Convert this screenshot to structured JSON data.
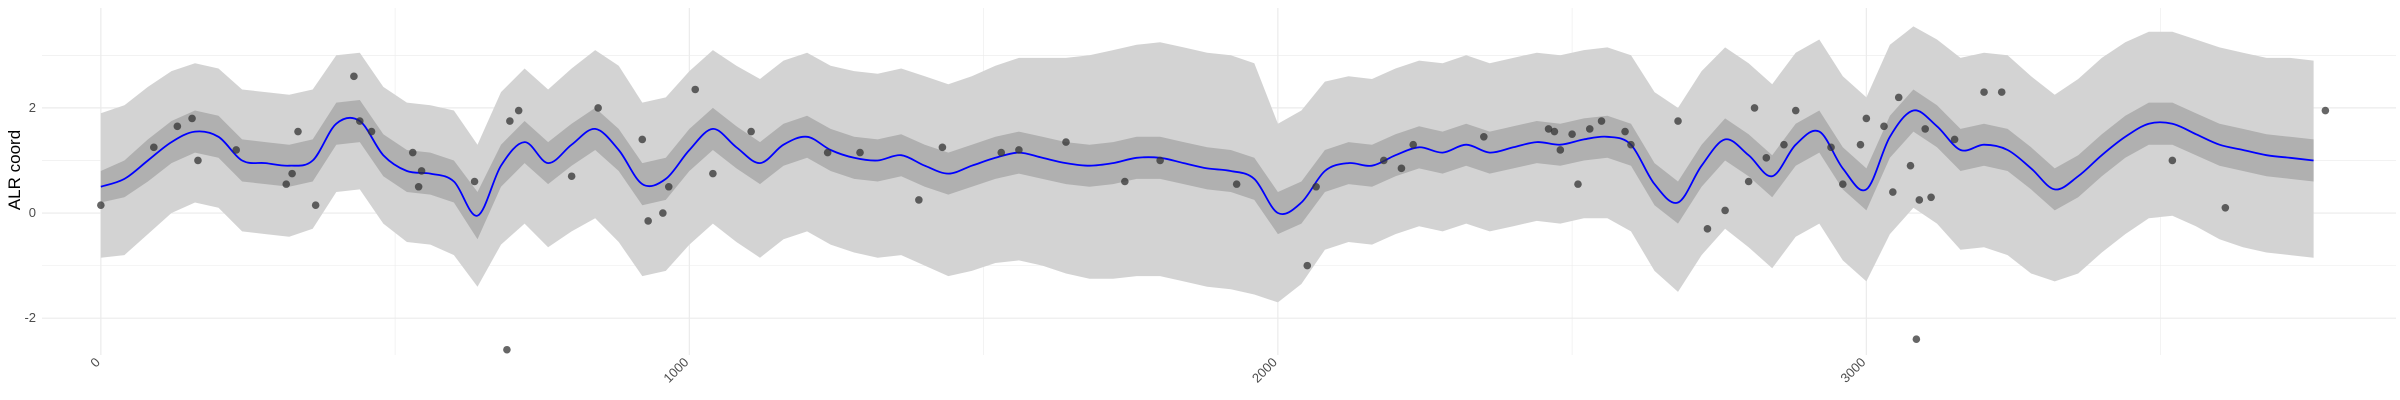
{
  "chart_data": {
    "type": "line",
    "title": "",
    "xlabel": "",
    "ylabel": "ALR coord",
    "xlim": [
      -100,
      3900
    ],
    "ylim": [
      -2.7,
      3.9
    ],
    "x_ticks": [
      0,
      1000,
      2000,
      3000
    ],
    "x_tick_labels": [
      "0",
      "1000",
      "2000",
      "3000"
    ],
    "y_ticks": [
      -2,
      0,
      2
    ],
    "y_tick_labels": [
      "-2",
      "0",
      "2"
    ],
    "grid": true,
    "colors": {
      "mean_line": "#0000ff",
      "inner_band": "#b0b0b0",
      "outer_band": "#d3d3d3",
      "points": "#333333",
      "grid": "#ebebeb"
    },
    "mean_curve": {
      "x": [
        0,
        40,
        80,
        120,
        160,
        200,
        240,
        280,
        320,
        360,
        400,
        440,
        480,
        520,
        560,
        600,
        640,
        680,
        720,
        760,
        800,
        840,
        880,
        920,
        960,
        1000,
        1040,
        1080,
        1120,
        1160,
        1200,
        1240,
        1280,
        1320,
        1360,
        1400,
        1440,
        1480,
        1520,
        1560,
        1600,
        1640,
        1680,
        1720,
        1760,
        1800,
        1840,
        1880,
        1920,
        1960,
        2000,
        2040,
        2080,
        2120,
        2160,
        2200,
        2240,
        2280,
        2320,
        2360,
        2400,
        2440,
        2480,
        2520,
        2560,
        2600,
        2640,
        2680,
        2720,
        2760,
        2800,
        2840,
        2880,
        2920,
        2960,
        3000,
        3040,
        3080,
        3120,
        3160,
        3200,
        3240,
        3280,
        3320,
        3360,
        3400,
        3440,
        3480,
        3520,
        3560,
        3600,
        3640,
        3680,
        3720,
        3760
      ],
      "y": [
        0.5,
        0.65,
        1.0,
        1.35,
        1.55,
        1.45,
        1.0,
        0.95,
        0.9,
        1.0,
        1.7,
        1.75,
        1.1,
        0.8,
        0.75,
        0.6,
        -0.05,
        0.9,
        1.35,
        0.95,
        1.3,
        1.6,
        1.2,
        0.55,
        0.65,
        1.2,
        1.6,
        1.25,
        0.95,
        1.3,
        1.45,
        1.2,
        1.05,
        1.0,
        1.1,
        0.9,
        0.75,
        0.9,
        1.05,
        1.15,
        1.05,
        0.95,
        0.9,
        0.95,
        1.05,
        1.05,
        0.95,
        0.85,
        0.8,
        0.65,
        0.0,
        0.2,
        0.8,
        0.95,
        0.9,
        1.1,
        1.25,
        1.15,
        1.3,
        1.15,
        1.25,
        1.35,
        1.3,
        1.4,
        1.45,
        1.3,
        0.55,
        0.2,
        0.9,
        1.4,
        1.1,
        0.7,
        1.3,
        1.55,
        0.85,
        0.45,
        1.45,
        1.95,
        1.65,
        1.2,
        1.3,
        1.2,
        0.85,
        0.45,
        0.7,
        1.1,
        1.45,
        1.7,
        1.7,
        1.5,
        1.3,
        1.2,
        1.1,
        1.05,
        1.0
      ]
    },
    "inner_band": {
      "lower": [
        0.2,
        0.3,
        0.6,
        0.95,
        1.15,
        1.05,
        0.6,
        0.55,
        0.5,
        0.6,
        1.3,
        1.35,
        0.7,
        0.4,
        0.35,
        0.2,
        -0.5,
        0.5,
        0.95,
        0.55,
        0.9,
        1.2,
        0.8,
        0.15,
        0.25,
        0.8,
        1.2,
        0.85,
        0.55,
        0.9,
        1.05,
        0.8,
        0.65,
        0.6,
        0.7,
        0.5,
        0.35,
        0.5,
        0.65,
        0.75,
        0.65,
        0.55,
        0.5,
        0.55,
        0.65,
        0.65,
        0.55,
        0.45,
        0.4,
        0.25,
        -0.4,
        -0.2,
        0.4,
        0.55,
        0.5,
        0.7,
        0.85,
        0.75,
        0.9,
        0.75,
        0.85,
        0.95,
        0.9,
        1.0,
        1.05,
        0.9,
        0.15,
        -0.2,
        0.5,
        1.0,
        0.7,
        0.3,
        0.9,
        1.15,
        0.45,
        0.05,
        1.05,
        1.55,
        1.25,
        0.8,
        0.9,
        0.8,
        0.45,
        0.05,
        0.3,
        0.7,
        1.05,
        1.3,
        1.3,
        1.1,
        0.9,
        0.8,
        0.7,
        0.65,
        0.6
      ],
      "upper": [
        0.8,
        1.0,
        1.4,
        1.75,
        1.95,
        1.85,
        1.4,
        1.35,
        1.3,
        1.4,
        2.1,
        2.15,
        1.5,
        1.2,
        1.15,
        1.0,
        0.4,
        1.3,
        1.75,
        1.35,
        1.7,
        2.0,
        1.6,
        0.95,
        1.05,
        1.6,
        2.0,
        1.65,
        1.35,
        1.7,
        1.85,
        1.6,
        1.45,
        1.4,
        1.5,
        1.3,
        1.15,
        1.3,
        1.45,
        1.55,
        1.45,
        1.35,
        1.3,
        1.35,
        1.45,
        1.45,
        1.35,
        1.25,
        1.2,
        1.05,
        0.4,
        0.6,
        1.2,
        1.35,
        1.3,
        1.5,
        1.65,
        1.55,
        1.7,
        1.55,
        1.65,
        1.75,
        1.7,
        1.8,
        1.85,
        1.7,
        0.95,
        0.6,
        1.3,
        1.8,
        1.5,
        1.1,
        1.7,
        1.95,
        1.25,
        0.85,
        1.85,
        2.35,
        2.05,
        1.6,
        1.7,
        1.6,
        1.25,
        0.85,
        1.1,
        1.5,
        1.85,
        2.1,
        2.1,
        1.9,
        1.7,
        1.6,
        1.5,
        1.45,
        1.4
      ]
    },
    "outer_band": {
      "lower": [
        -0.85,
        -0.8,
        -0.4,
        0.0,
        0.2,
        0.1,
        -0.35,
        -0.4,
        -0.45,
        -0.3,
        0.4,
        0.45,
        -0.2,
        -0.55,
        -0.6,
        -0.8,
        -1.4,
        -0.6,
        -0.2,
        -0.65,
        -0.35,
        -0.1,
        -0.55,
        -1.2,
        -1.1,
        -0.6,
        -0.2,
        -0.55,
        -0.85,
        -0.5,
        -0.35,
        -0.6,
        -0.75,
        -0.85,
        -0.8,
        -1.0,
        -1.2,
        -1.1,
        -0.95,
        -0.9,
        -1.0,
        -1.15,
        -1.25,
        -1.25,
        -1.2,
        -1.2,
        -1.3,
        -1.4,
        -1.45,
        -1.55,
        -1.7,
        -1.35,
        -0.7,
        -0.55,
        -0.6,
        -0.4,
        -0.25,
        -0.35,
        -0.2,
        -0.35,
        -0.25,
        -0.15,
        -0.2,
        -0.1,
        -0.1,
        -0.35,
        -1.1,
        -1.5,
        -0.8,
        -0.3,
        -0.65,
        -1.05,
        -0.45,
        -0.2,
        -0.9,
        -1.3,
        -0.4,
        0.1,
        -0.2,
        -0.7,
        -0.65,
        -0.8,
        -1.15,
        -1.3,
        -1.15,
        -0.75,
        -0.4,
        -0.1,
        -0.05,
        -0.25,
        -0.5,
        -0.65,
        -0.75,
        -0.8,
        -0.85
      ],
      "upper": [
        1.9,
        2.05,
        2.4,
        2.7,
        2.85,
        2.75,
        2.35,
        2.3,
        2.25,
        2.35,
        3.0,
        3.05,
        2.4,
        2.1,
        2.05,
        1.95,
        1.3,
        2.3,
        2.75,
        2.35,
        2.75,
        3.1,
        2.8,
        2.1,
        2.2,
        2.7,
        3.1,
        2.8,
        2.55,
        2.9,
        3.05,
        2.8,
        2.7,
        2.65,
        2.75,
        2.6,
        2.45,
        2.6,
        2.8,
        2.95,
        2.95,
        2.95,
        3.0,
        3.1,
        3.2,
        3.25,
        3.15,
        3.05,
        3.0,
        2.85,
        1.7,
        1.95,
        2.5,
        2.6,
        2.55,
        2.75,
        2.9,
        2.85,
        3.0,
        2.85,
        2.95,
        3.05,
        3.0,
        3.1,
        3.15,
        3.0,
        2.3,
        2.0,
        2.7,
        3.15,
        2.85,
        2.45,
        3.05,
        3.3,
        2.6,
        2.2,
        3.2,
        3.55,
        3.3,
        2.95,
        3.05,
        3.0,
        2.6,
        2.25,
        2.55,
        2.95,
        3.25,
        3.45,
        3.45,
        3.3,
        3.15,
        3.05,
        2.95,
        2.95,
        2.9
      ]
    },
    "points": {
      "x": [
        0,
        90,
        130,
        155,
        165,
        230,
        315,
        325,
        335,
        365,
        430,
        440,
        460,
        530,
        540,
        545,
        635,
        690,
        695,
        710,
        800,
        845,
        920,
        930,
        955,
        965,
        1010,
        1040,
        1105,
        1235,
        1290,
        1390,
        1430,
        1530,
        1560,
        1640,
        1740,
        1800,
        1930,
        2050,
        2065,
        2180,
        2210,
        2230,
        2350,
        2460,
        2470,
        2480,
        2500,
        2510,
        2530,
        2550,
        2590,
        2600,
        2680,
        2730,
        2760,
        2800,
        2810,
        2830,
        2860,
        2880,
        2940,
        2960,
        2990,
        3000,
        3030,
        3045,
        3055,
        3075,
        3085,
        3090,
        3100,
        3110,
        3150,
        3200,
        3230,
        3520,
        3610,
        3780
      ],
      "y": [
        0.15,
        1.25,
        1.65,
        1.8,
        1.0,
        1.2,
        0.55,
        0.75,
        1.55,
        0.15,
        2.6,
        1.75,
        1.55,
        1.15,
        0.5,
        0.8,
        0.6,
        -2.6,
        1.75,
        1.95,
        0.7,
        2.0,
        1.4,
        -0.15,
        0.0,
        0.5,
        2.35,
        0.75,
        1.55,
        1.15,
        1.15,
        0.25,
        1.25,
        1.15,
        1.2,
        1.35,
        0.6,
        1.0,
        0.55,
        -1.0,
        0.5,
        1.0,
        0.85,
        1.3,
        1.45,
        1.6,
        1.55,
        1.2,
        1.5,
        0.55,
        1.6,
        1.75,
        1.55,
        1.3,
        1.75,
        -0.3,
        0.05,
        0.6,
        2.0,
        1.05,
        1.3,
        1.95,
        1.25,
        0.55,
        1.3,
        1.8,
        1.65,
        0.4,
        2.2,
        0.9,
        -2.4,
        0.25,
        1.6,
        0.3,
        1.4,
        2.3,
        2.3,
        1.0,
        0.1,
        1.95
      ]
    }
  }
}
